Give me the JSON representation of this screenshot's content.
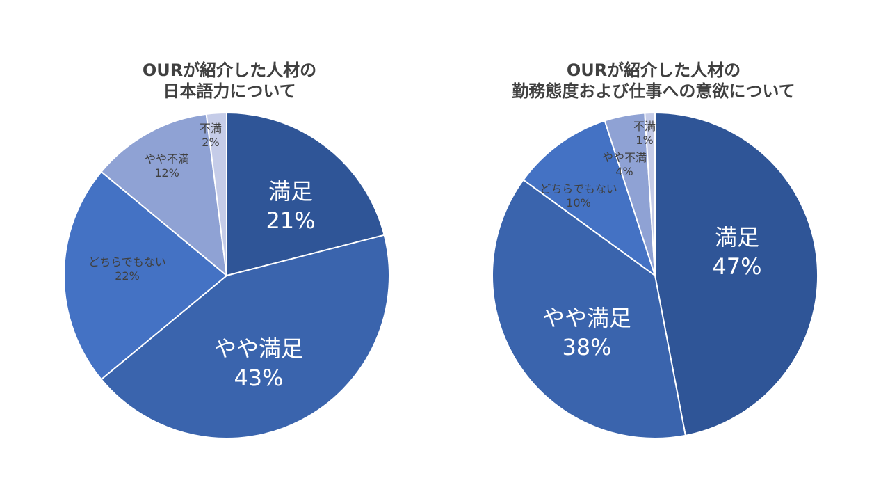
{
  "chart_data": [
    {
      "type": "pie",
      "title": [
        "OURが紹介した人材の",
        "日本語力について"
      ],
      "slices": [
        {
          "label": "満足",
          "value": 21,
          "display": "21%",
          "color": "#2F5597"
        },
        {
          "label": "やや満足",
          "value": 43,
          "display": "43%",
          "color": "#3A64AD"
        },
        {
          "label": "どちらでもない",
          "value": 22,
          "display": "22%",
          "color": "#4472C4"
        },
        {
          "label": "やや不満",
          "value": 12,
          "display": "12%",
          "color": "#8FA2D4"
        },
        {
          "label": "不満",
          "value": 2,
          "display": "2%",
          "color": "#C5CCE8"
        }
      ]
    },
    {
      "type": "pie",
      "title": [
        "OURが紹介した人材の",
        "勤務態度および仕事への意欲について"
      ],
      "slices": [
        {
          "label": "満足",
          "value": 47,
          "display": "47%",
          "color": "#2F5597"
        },
        {
          "label": "やや満足",
          "value": 38,
          "display": "38%",
          "color": "#3A64AD"
        },
        {
          "label": "どちらでもない",
          "value": 10,
          "display": "10%",
          "color": "#4472C4"
        },
        {
          "label": "やや不満",
          "value": 4,
          "display": "4%",
          "color": "#8FA2D4"
        },
        {
          "label": "不満",
          "value": 1,
          "display": "1%",
          "color": "#C5CCE8"
        }
      ]
    }
  ]
}
